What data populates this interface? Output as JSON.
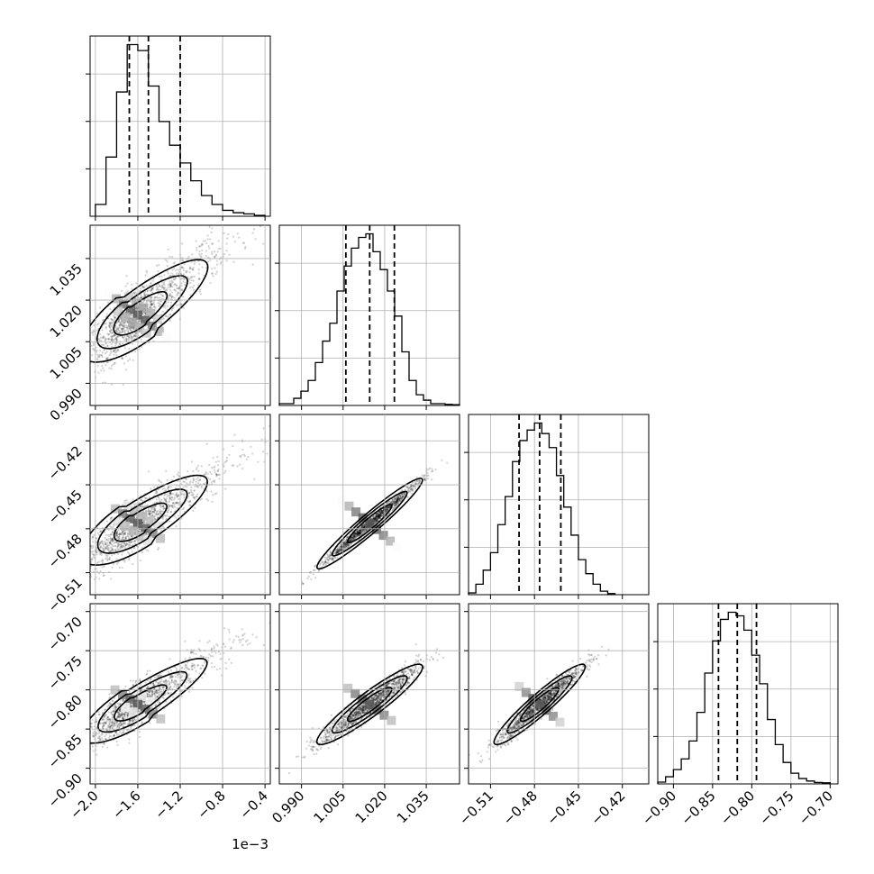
{
  "chart_data": {
    "type": "scatter",
    "subtype": "corner",
    "title": "",
    "params": [
      {
        "range": [
          -2.05,
          -0.35
        ],
        "ticks": [
          -2.0,
          -1.6,
          -1.2,
          -0.8,
          -0.4
        ],
        "tick_labels": [
          "−2.0",
          "−1.6",
          "−1.2",
          "−0.8",
          "−0.4"
        ],
        "offset_label": "1e−3",
        "quantiles": [
          -1.68,
          -1.5,
          -1.2
        ],
        "mode": -1.6,
        "hist": {
          "edges": [
            -2.0,
            -1.9,
            -1.8,
            -1.7,
            -1.6,
            -1.5,
            -1.4,
            -1.3,
            -1.2,
            -1.1,
            -1.0,
            -0.9,
            -0.8,
            -0.7,
            -0.6,
            -0.5,
            -0.4
          ],
          "counts": [
            2,
            10,
            21,
            29,
            28,
            22,
            16,
            12,
            9,
            6,
            3.5,
            2,
            1,
            0.6,
            0.4,
            0.15
          ]
        }
      },
      {
        "range": [
          0.982,
          1.047
        ],
        "ticks": [
          0.99,
          1.005,
          1.02,
          1.035
        ],
        "tick_labels": [
          "0.990",
          "1.005",
          "1.020",
          "1.035"
        ],
        "quantiles": [
          1.006,
          1.0146,
          1.0235
        ],
        "mode": 1.0146,
        "hist": {
          "edges": [
            0.982,
            0.9846,
            0.9872,
            0.9898,
            0.9924,
            0.995,
            0.9976,
            1.0002,
            1.0028,
            1.0054,
            1.008,
            1.0106,
            1.0132,
            1.0158,
            1.0184,
            1.021,
            1.0236,
            1.0262,
            1.0288,
            1.0314,
            1.034,
            1.0366,
            1.0392,
            1.0418,
            1.0444,
            1.047
          ],
          "counts": [
            0.5,
            0.5,
            2,
            4,
            7,
            12,
            18,
            23,
            32,
            39,
            44,
            47,
            48,
            43,
            38,
            32,
            25,
            15,
            7,
            3,
            1.5,
            0.5,
            0.5,
            0.3,
            0.2
          ]
        }
      },
      {
        "range": [
          -0.525,
          -0.402
        ],
        "ticks": [
          -0.51,
          -0.48,
          -0.45,
          -0.42
        ],
        "tick_labels": [
          "−0.51",
          "−0.48",
          "−0.45",
          "−0.42"
        ],
        "quantiles": [
          -0.4905,
          -0.4765,
          -0.462
        ],
        "mode": -0.4765,
        "hist": {
          "edges": [
            -0.525,
            -0.52,
            -0.515,
            -0.51,
            -0.505,
            -0.5,
            -0.495,
            -0.49,
            -0.485,
            -0.48,
            -0.475,
            -0.47,
            -0.465,
            -0.46,
            -0.455,
            -0.45,
            -0.445,
            -0.44,
            -0.435,
            -0.43,
            -0.425
          ],
          "counts": [
            0.5,
            3,
            7,
            12,
            20,
            28,
            38,
            44,
            47,
            49,
            46,
            42,
            34,
            25,
            17,
            10,
            6,
            3,
            1,
            0.3
          ]
        }
      },
      {
        "range": [
          -0.92,
          -0.69
        ],
        "ticks": [
          -0.9,
          -0.85,
          -0.8,
          -0.75,
          -0.7
        ],
        "tick_labels": [
          "−0.90",
          "−0.85",
          "−0.80",
          "−0.75",
          "−0.70"
        ],
        "quantiles": [
          -0.8425,
          -0.8185,
          -0.794
        ],
        "mode": -0.8185,
        "hist": {
          "edges": [
            -0.92,
            -0.91,
            -0.9,
            -0.89,
            -0.88,
            -0.87,
            -0.86,
            -0.85,
            -0.84,
            -0.83,
            -0.82,
            -0.81,
            -0.8,
            -0.79,
            -0.78,
            -0.77,
            -0.76,
            -0.75,
            -0.74,
            -0.73,
            -0.72,
            -0.71,
            -0.7
          ],
          "counts": [
            0.5,
            2,
            4,
            7,
            12,
            20,
            31,
            40,
            46,
            48,
            47,
            43,
            36,
            28,
            18,
            11,
            6,
            3,
            1.5,
            0.8,
            0.4,
            0.3
          ]
        }
      }
    ],
    "correlations": {
      "1-0": 0.8,
      "2-0": 0.8,
      "2-1": 0.99,
      "3-0": 0.85,
      "3-1": 0.95,
      "3-2": 0.96
    },
    "marginal_histograms": "step",
    "quantile_lines": "dashed",
    "contour_levels": 3,
    "grid": true,
    "legend": "none"
  }
}
